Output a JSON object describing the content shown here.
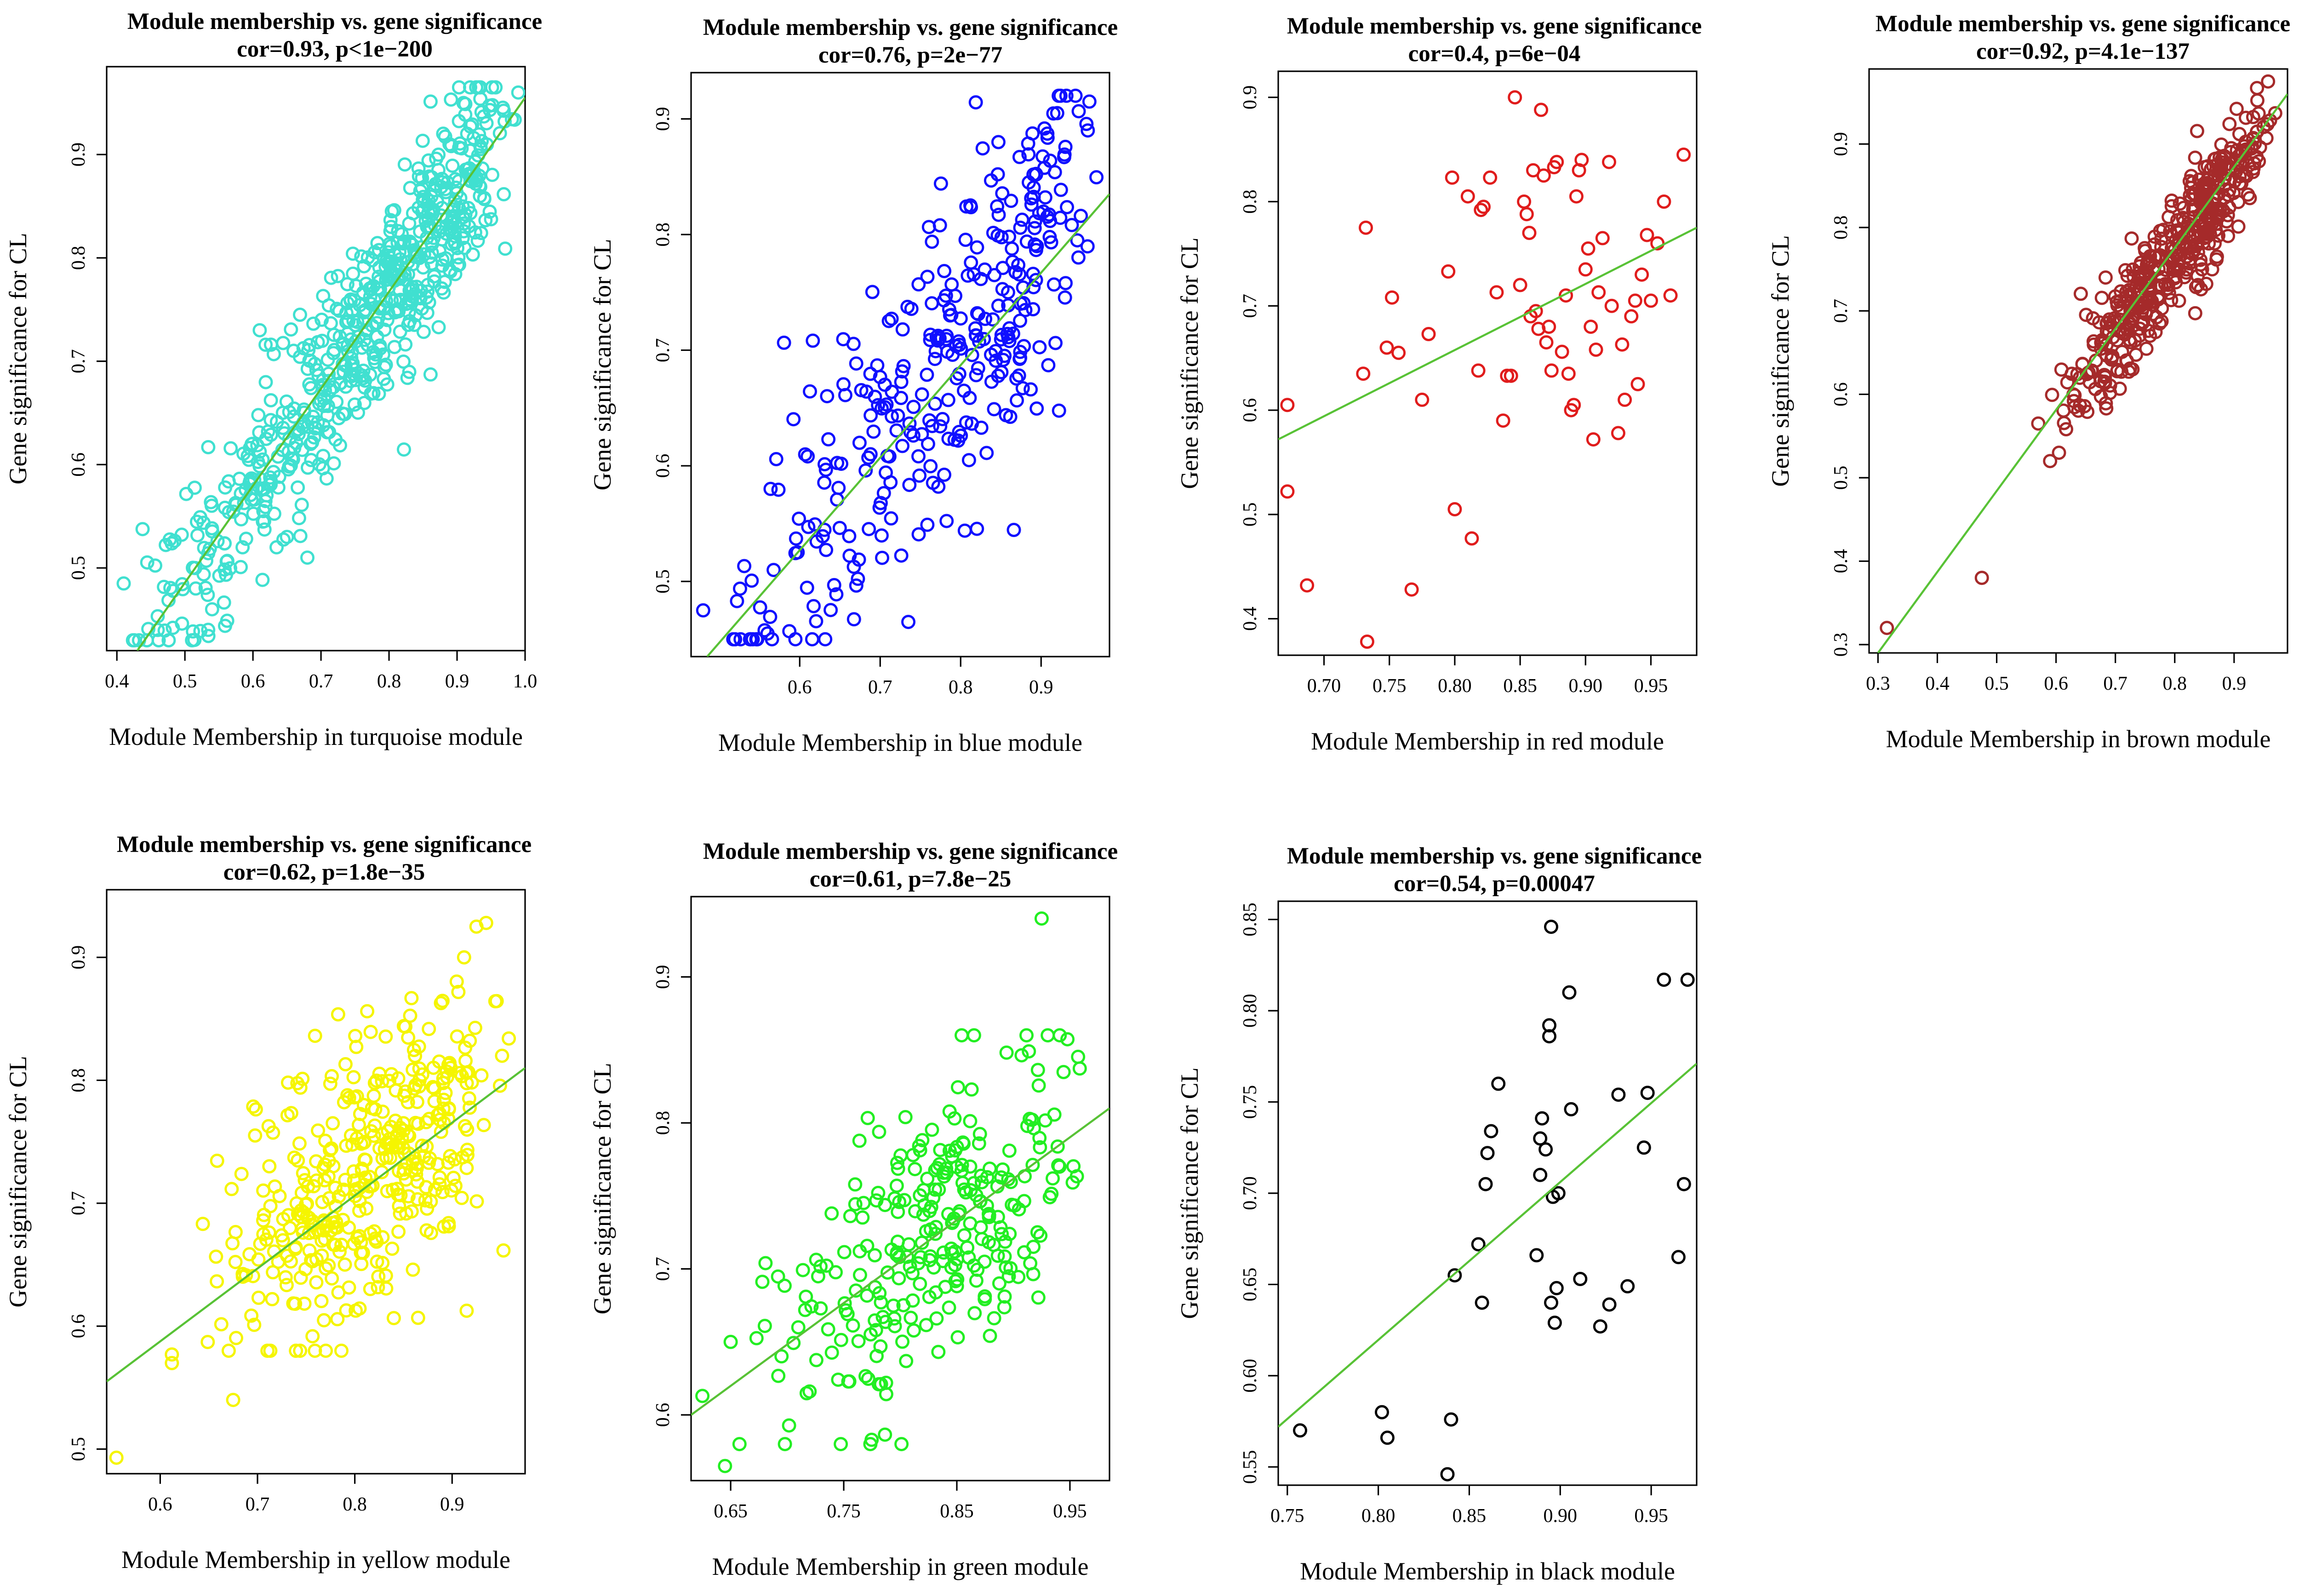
{
  "figure": {
    "fit_line_color": "#58c236"
  },
  "chart_data": [
    {
      "type": "scatter",
      "module": "turquoise",
      "color": "#40e0d0",
      "title": "Module membership vs. gene significance",
      "subtitle": "cor=0.93, p<1e−200",
      "xlabel": "Module Membership in turquoise module",
      "ylabel": "Gene significance for CL",
      "xlim": [
        0.385,
        1.0
      ],
      "ylim": [
        0.42,
        0.985
      ],
      "xticks": [
        0.4,
        0.5,
        0.6,
        0.7,
        0.8,
        0.9,
        1.0
      ],
      "xtick_labels": [
        "0.4",
        "0.5",
        "0.6",
        "0.7",
        "0.8",
        "0.9",
        "1.0"
      ],
      "yticks": [
        0.5,
        0.6,
        0.7,
        0.8,
        0.9
      ],
      "ytick_labels": [
        "0.5",
        "0.6",
        "0.7",
        "0.8",
        "0.9"
      ],
      "fit": [
        [
          0.43,
          0.42
        ],
        [
          1.0,
          0.955
        ]
      ],
      "gen": {
        "n": 620,
        "xmin": 0.4,
        "xmax": 0.99,
        "xmode": 0.88,
        "slope": 0.93,
        "intercept": 0.02,
        "noise": 0.045,
        "ymin": 0.43,
        "ymax": 0.965,
        "seed": 11
      },
      "points": [
        [
          0.41,
          0.485
        ],
        [
          0.46,
          0.44
        ],
        [
          0.54,
          0.46
        ],
        [
          0.61,
          0.73
        ],
        [
          0.68,
          0.51
        ],
        [
          0.65,
          0.53
        ],
        [
          0.99,
          0.96
        ]
      ]
    },
    {
      "type": "scatter",
      "module": "blue",
      "color": "#1010ff",
      "title": "Module membership vs. gene significance",
      "subtitle": "cor=0.76, p=2e−77",
      "xlabel": "Module Membership in blue module",
      "ylabel": "Gene significance for CL",
      "xlim": [
        0.465,
        0.985
      ],
      "ylim": [
        0.435,
        0.94
      ],
      "xticks": [
        0.6,
        0.7,
        0.8,
        0.9
      ],
      "xtick_labels": [
        "0.6",
        "0.7",
        "0.8",
        "0.9"
      ],
      "yticks": [
        0.5,
        0.6,
        0.7,
        0.8,
        0.9
      ],
      "ytick_labels": [
        "0.5",
        "0.6",
        "0.7",
        "0.8",
        "0.9"
      ],
      "fit": [
        [
          0.485,
          0.435
        ],
        [
          0.985,
          0.835
        ]
      ],
      "gen": {
        "n": 330,
        "xmin": 0.48,
        "xmax": 0.975,
        "xmode": 0.88,
        "slope": 0.82,
        "intercept": 0.04,
        "noise": 0.07,
        "ymin": 0.45,
        "ymax": 0.92,
        "seed": 23
      },
      "points": [
        [
          0.48,
          0.475
        ],
        [
          0.56,
          0.455
        ],
        [
          0.735,
          0.465
        ],
        [
          0.96,
          0.915
        ],
        [
          0.92,
          0.905
        ]
      ]
    },
    {
      "type": "scatter",
      "module": "red",
      "color": "#e01c1c",
      "title": "Module membership vs. gene significance",
      "subtitle": "cor=0.4, p=6e−04",
      "xlabel": "Module Membership in red module",
      "ylabel": "Gene significance for CL",
      "xlim": [
        0.665,
        0.985
      ],
      "ylim": [
        0.365,
        0.925
      ],
      "xticks": [
        0.7,
        0.75,
        0.8,
        0.85,
        0.9,
        0.95
      ],
      "xtick_labels": [
        "0.70",
        "0.75",
        "0.80",
        "0.85",
        "0.90",
        "0.95"
      ],
      "yticks": [
        0.4,
        0.5,
        0.6,
        0.7,
        0.8,
        0.9
      ],
      "ytick_labels": [
        "0.4",
        "0.5",
        "0.6",
        "0.7",
        "0.8",
        "0.9"
      ],
      "fit": [
        [
          0.665,
          0.572
        ],
        [
          0.985,
          0.775
        ]
      ],
      "points": [
        [
          0.672,
          0.605
        ],
        [
          0.672,
          0.522
        ],
        [
          0.687,
          0.432
        ],
        [
          0.73,
          0.635
        ],
        [
          0.732,
          0.775
        ],
        [
          0.733,
          0.378
        ],
        [
          0.748,
          0.66
        ],
        [
          0.752,
          0.708
        ],
        [
          0.757,
          0.655
        ],
        [
          0.767,
          0.428
        ],
        [
          0.775,
          0.61
        ],
        [
          0.78,
          0.673
        ],
        [
          0.795,
          0.733
        ],
        [
          0.798,
          0.823
        ],
        [
          0.8,
          0.505
        ],
        [
          0.81,
          0.805
        ],
        [
          0.813,
          0.477
        ],
        [
          0.818,
          0.638
        ],
        [
          0.82,
          0.792
        ],
        [
          0.822,
          0.795
        ],
        [
          0.827,
          0.823
        ],
        [
          0.832,
          0.713
        ],
        [
          0.837,
          0.59
        ],
        [
          0.84,
          0.633
        ],
        [
          0.843,
          0.633
        ],
        [
          0.846,
          0.9
        ],
        [
          0.85,
          0.72
        ],
        [
          0.853,
          0.8
        ],
        [
          0.855,
          0.788
        ],
        [
          0.857,
          0.77
        ],
        [
          0.858,
          0.69
        ],
        [
          0.86,
          0.83
        ],
        [
          0.862,
          0.695
        ],
        [
          0.864,
          0.678
        ],
        [
          0.866,
          0.888
        ],
        [
          0.868,
          0.825
        ],
        [
          0.87,
          0.665
        ],
        [
          0.872,
          0.68
        ],
        [
          0.874,
          0.638
        ],
        [
          0.876,
          0.833
        ],
        [
          0.878,
          0.838
        ],
        [
          0.882,
          0.656
        ],
        [
          0.885,
          0.71
        ],
        [
          0.887,
          0.635
        ],
        [
          0.889,
          0.6
        ],
        [
          0.891,
          0.605
        ],
        [
          0.893,
          0.805
        ],
        [
          0.895,
          0.83
        ],
        [
          0.897,
          0.84
        ],
        [
          0.9,
          0.735
        ],
        [
          0.902,
          0.755
        ],
        [
          0.904,
          0.68
        ],
        [
          0.906,
          0.572
        ],
        [
          0.908,
          0.658
        ],
        [
          0.91,
          0.713
        ],
        [
          0.913,
          0.765
        ],
        [
          0.918,
          0.838
        ],
        [
          0.92,
          0.7
        ],
        [
          0.925,
          0.578
        ],
        [
          0.928,
          0.663
        ],
        [
          0.93,
          0.61
        ],
        [
          0.935,
          0.69
        ],
        [
          0.938,
          0.705
        ],
        [
          0.94,
          0.625
        ],
        [
          0.943,
          0.73
        ],
        [
          0.947,
          0.768
        ],
        [
          0.95,
          0.705
        ],
        [
          0.955,
          0.76
        ],
        [
          0.96,
          0.8
        ],
        [
          0.965,
          0.71
        ],
        [
          0.975,
          0.845
        ]
      ]
    },
    {
      "type": "scatter",
      "module": "brown",
      "color": "#a52a2a",
      "title": "Module membership vs. gene significance",
      "subtitle": "cor=0.92, p=4.1e−137",
      "xlabel": "Module Membership in brown module",
      "ylabel": "Gene significance for CL",
      "xlim": [
        0.285,
        0.99
      ],
      "ylim": [
        0.29,
        0.99
      ],
      "xticks": [
        0.3,
        0.4,
        0.5,
        0.6,
        0.7,
        0.8,
        0.9
      ],
      "xtick_labels": [
        "0.3",
        "0.4",
        "0.5",
        "0.6",
        "0.7",
        "0.8",
        "0.9"
      ],
      "yticks": [
        0.3,
        0.4,
        0.5,
        0.6,
        0.7,
        0.8,
        0.9
      ],
      "ytick_labels": [
        "0.3",
        "0.4",
        "0.5",
        "0.6",
        "0.7",
        "0.8",
        "0.9"
      ],
      "fit": [
        [
          0.3,
          0.29
        ],
        [
          0.99,
          0.96
        ]
      ],
      "gen": {
        "n": 430,
        "xmin": 0.58,
        "xmax": 0.975,
        "xmode": 0.85,
        "slope": 0.96,
        "intercept": 0.0,
        "noise": 0.035,
        "ymin": 0.5,
        "ymax": 0.975,
        "seed": 47
      },
      "points": [
        [
          0.315,
          0.32
        ],
        [
          0.475,
          0.38
        ],
        [
          0.57,
          0.565
        ],
        [
          0.59,
          0.52
        ],
        [
          0.605,
          0.53
        ]
      ]
    },
    {
      "type": "scatter",
      "module": "yellow",
      "color": "#f5f500",
      "title": "Module membership vs. gene significance",
      "subtitle": "cor=0.62, p=1.8e−35",
      "xlabel": "Module Membership in yellow module",
      "ylabel": "Gene significance for CL",
      "xlim": [
        0.545,
        0.975
      ],
      "ylim": [
        0.48,
        0.955
      ],
      "xticks": [
        0.6,
        0.7,
        0.8,
        0.9
      ],
      "xtick_labels": [
        "0.6",
        "0.7",
        "0.8",
        "0.9"
      ],
      "yticks": [
        0.5,
        0.6,
        0.7,
        0.8,
        0.9
      ],
      "ytick_labels": [
        "0.5",
        "0.6",
        "0.7",
        "0.8",
        "0.9"
      ],
      "fit": [
        [
          0.545,
          0.555
        ],
        [
          0.975,
          0.81
        ]
      ],
      "gen": {
        "n": 400,
        "xmin": 0.63,
        "xmax": 0.965,
        "xmode": 0.82,
        "slope": 0.6,
        "intercept": 0.235,
        "noise": 0.055,
        "ymin": 0.58,
        "ymax": 0.9,
        "seed": 61
      },
      "points": [
        [
          0.555,
          0.493
        ],
        [
          0.612,
          0.577
        ],
        [
          0.612,
          0.57
        ],
        [
          0.675,
          0.54
        ],
        [
          0.925,
          0.925
        ],
        [
          0.935,
          0.928
        ]
      ]
    },
    {
      "type": "scatter",
      "module": "green",
      "color": "#22ee22",
      "title": "Module membership vs. gene significance",
      "subtitle": "cor=0.61, p=7.8e−25",
      "xlabel": "Module Membership in green module",
      "ylabel": "Gene significance for CL",
      "xlim": [
        0.615,
        0.985
      ],
      "ylim": [
        0.555,
        0.955
      ],
      "xticks": [
        0.65,
        0.75,
        0.85,
        0.95
      ],
      "xtick_labels": [
        "0.65",
        "0.75",
        "0.85",
        "0.95"
      ],
      "yticks": [
        0.6,
        0.7,
        0.8,
        0.9
      ],
      "ytick_labels": [
        "0.6",
        "0.7",
        "0.8",
        "0.9"
      ],
      "fit": [
        [
          0.615,
          0.6
        ],
        [
          0.985,
          0.81
        ]
      ],
      "gen": {
        "n": 280,
        "xmin": 0.65,
        "xmax": 0.975,
        "xmode": 0.85,
        "slope": 0.57,
        "intercept": 0.25,
        "noise": 0.05,
        "ymin": 0.58,
        "ymax": 0.86,
        "seed": 83
      },
      "points": [
        [
          0.625,
          0.613
        ],
        [
          0.645,
          0.565
        ],
        [
          0.65,
          0.65
        ],
        [
          0.698,
          0.58
        ],
        [
          0.925,
          0.94
        ]
      ]
    },
    {
      "type": "scatter",
      "module": "black",
      "color": "#000000",
      "title": "Module membership vs. gene significance",
      "subtitle": "cor=0.54, p=0.00047",
      "xlabel": "Module Membership in black module",
      "ylabel": "Gene significance for CL",
      "xlim": [
        0.745,
        0.975
      ],
      "ylim": [
        0.54,
        0.86
      ],
      "xticks": [
        0.75,
        0.8,
        0.85,
        0.9,
        0.95
      ],
      "xtick_labels": [
        "0.75",
        "0.80",
        "0.85",
        "0.90",
        "0.95"
      ],
      "yticks": [
        0.55,
        0.6,
        0.65,
        0.7,
        0.75,
        0.8,
        0.85
      ],
      "ytick_labels": [
        "0.55",
        "0.60",
        "0.65",
        "0.70",
        "0.75",
        "0.80",
        "0.85"
      ],
      "fit": [
        [
          0.745,
          0.572
        ],
        [
          0.975,
          0.771
        ]
      ],
      "points": [
        [
          0.757,
          0.57
        ],
        [
          0.802,
          0.58
        ],
        [
          0.805,
          0.566
        ],
        [
          0.838,
          0.546
        ],
        [
          0.84,
          0.576
        ],
        [
          0.842,
          0.655
        ],
        [
          0.855,
          0.672
        ],
        [
          0.857,
          0.64
        ],
        [
          0.859,
          0.705
        ],
        [
          0.86,
          0.722
        ],
        [
          0.862,
          0.734
        ],
        [
          0.866,
          0.76
        ],
        [
          0.887,
          0.666
        ],
        [
          0.889,
          0.73
        ],
        [
          0.889,
          0.71
        ],
        [
          0.89,
          0.741
        ],
        [
          0.892,
          0.724
        ],
        [
          0.894,
          0.792
        ],
        [
          0.894,
          0.786
        ],
        [
          0.895,
          0.846
        ],
        [
          0.895,
          0.64
        ],
        [
          0.896,
          0.698
        ],
        [
          0.897,
          0.629
        ],
        [
          0.898,
          0.648
        ],
        [
          0.899,
          0.7
        ],
        [
          0.905,
          0.81
        ],
        [
          0.906,
          0.746
        ],
        [
          0.911,
          0.653
        ],
        [
          0.922,
          0.627
        ],
        [
          0.927,
          0.639
        ],
        [
          0.932,
          0.754
        ],
        [
          0.937,
          0.649
        ],
        [
          0.946,
          0.725
        ],
        [
          0.948,
          0.755
        ],
        [
          0.957,
          0.817
        ],
        [
          0.965,
          0.665
        ],
        [
          0.968,
          0.705
        ],
        [
          0.97,
          0.817
        ]
      ]
    }
  ]
}
